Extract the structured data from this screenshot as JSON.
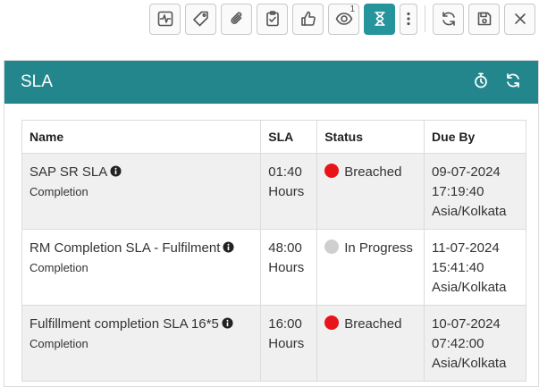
{
  "toolbar": {
    "items": [
      {
        "icon": "activity-icon"
      },
      {
        "icon": "tag-icon"
      },
      {
        "icon": "paperclip-icon"
      },
      {
        "icon": "clipboard-check-icon"
      },
      {
        "icon": "thumbs-up-icon"
      },
      {
        "icon": "eye-icon",
        "badge": "1"
      },
      {
        "icon": "hourglass-icon",
        "active": true
      },
      {
        "icon": "kebab-menu-icon"
      },
      {
        "icon": "refresh-icon"
      },
      {
        "icon": "save-icon"
      },
      {
        "icon": "close-icon"
      }
    ]
  },
  "panel": {
    "title": "SLA",
    "header_color": "#24868d"
  },
  "table": {
    "headers": {
      "name": "Name",
      "sla": "SLA",
      "status": "Status",
      "due_by": "Due By"
    },
    "rows": [
      {
        "name": "SAP SR SLA",
        "type": "Completion",
        "sla_value": "01:40",
        "sla_unit": "Hours",
        "status": "Breached",
        "status_color": "#e8141a",
        "due_date": "09-07-2024",
        "due_time": "17:19:40",
        "due_tz": "Asia/Kolkata"
      },
      {
        "name": "RM Completion SLA - Fulfilment",
        "type": "Completion",
        "sla_value": "48:00",
        "sla_unit": "Hours",
        "status": "In Progress",
        "status_color": "#cfcfcf",
        "due_date": "11-07-2024",
        "due_time": "15:41:40",
        "due_tz": "Asia/Kolkata"
      },
      {
        "name": "Fulfillment completion SLA 16*5",
        "type": "Completion",
        "sla_value": "16:00",
        "sla_unit": "Hours",
        "status": "Breached",
        "status_color": "#e8141a",
        "due_date": "10-07-2024",
        "due_time": "07:42:00",
        "due_tz": "Asia/Kolkata"
      }
    ]
  }
}
